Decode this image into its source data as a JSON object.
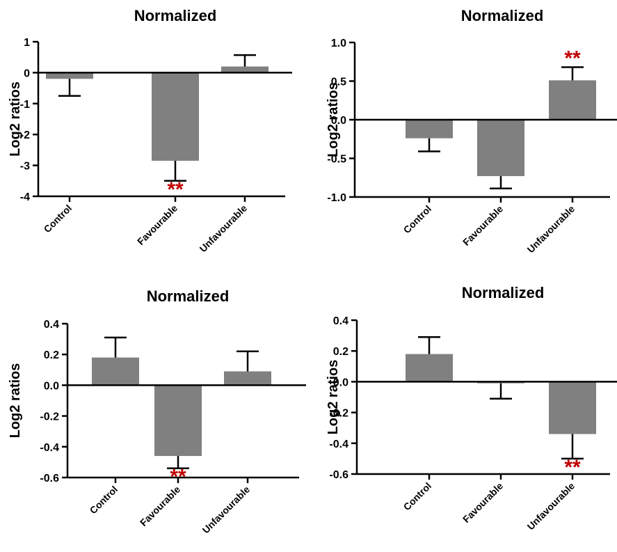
{
  "colors": {
    "bar": "#808080",
    "axis": "#000000",
    "significance": "#c00000"
  },
  "chart_data": [
    {
      "type": "bar",
      "title": "Normalized",
      "ylabel": "Log2 ratios",
      "categories": [
        "Control",
        "Favourable",
        "Unfavourable"
      ],
      "values": [
        -0.2,
        -2.85,
        0.2
      ],
      "errors": [
        0.55,
        0.65,
        0.37
      ],
      "ylim": [
        -4,
        1
      ],
      "yticks": [
        1,
        0,
        -1,
        -2,
        -3,
        -4
      ],
      "ytick_labels": [
        "1",
        "0",
        "-1",
        "-2",
        "-3",
        "-4"
      ],
      "significance": [
        "",
        "**",
        ""
      ]
    },
    {
      "type": "bar",
      "title": "Normalized",
      "ylabel": "Log2 ratios",
      "categories": [
        "Control",
        "Favourable",
        "Unfavourable"
      ],
      "values": [
        -0.24,
        -0.73,
        0.51
      ],
      "errors": [
        0.17,
        0.16,
        0.17
      ],
      "ylim": [
        -1.0,
        1.0
      ],
      "yticks": [
        1.0,
        0.5,
        0.0,
        -0.5,
        -1.0
      ],
      "ytick_labels": [
        "1.0",
        "0.5",
        "0.0",
        "-0.5",
        "-1.0"
      ],
      "significance": [
        "",
        "",
        "**"
      ]
    },
    {
      "type": "bar",
      "title": "Normalized",
      "ylabel": "Log2 ratios",
      "categories": [
        "Control",
        "Favourable",
        "Unfavourable"
      ],
      "values": [
        0.18,
        -0.46,
        0.09
      ],
      "errors": [
        0.13,
        0.08,
        0.13
      ],
      "ylim": [
        -0.6,
        0.4
      ],
      "yticks": [
        0.4,
        0.2,
        0.0,
        -0.2,
        -0.4,
        -0.6
      ],
      "ytick_labels": [
        "0.4",
        "0.2",
        "0.0",
        "-0.2",
        "-0.4",
        "-0.6"
      ],
      "significance": [
        "",
        "**",
        ""
      ]
    },
    {
      "type": "bar",
      "title": "Normalized",
      "ylabel": "Log2 ratios",
      "categories": [
        "Control",
        "Favourable",
        "Unfavourable"
      ],
      "values": [
        0.18,
        -0.01,
        -0.34
      ],
      "errors": [
        0.11,
        0.1,
        0.16
      ],
      "ylim": [
        -0.6,
        0.4
      ],
      "yticks": [
        0.4,
        0.2,
        0.0,
        -0.2,
        -0.4,
        -0.6
      ],
      "ytick_labels": [
        "0.4",
        "0.2",
        "0.0",
        "-0.2",
        "-0.4",
        "-0.6"
      ],
      "significance": [
        "",
        "",
        "**"
      ]
    }
  ]
}
